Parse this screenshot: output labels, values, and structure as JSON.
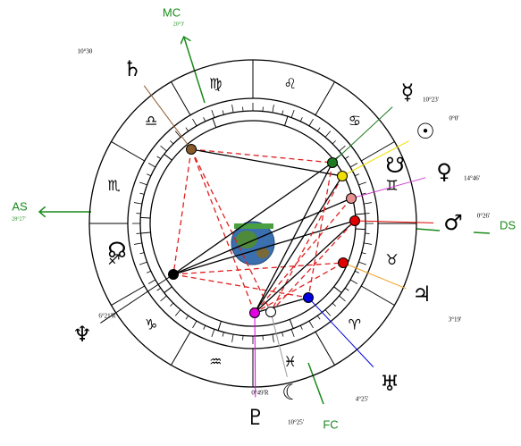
{
  "angles": {
    "mc": {
      "label": "MC",
      "degree": "20°3'"
    },
    "as": {
      "label": "AS",
      "degree": "28°27'"
    },
    "ds": {
      "label": "DS"
    },
    "fc": {
      "label": "FC"
    }
  },
  "signs": [
    "♍",
    "♌",
    "♋",
    "♊",
    "♉",
    "♈",
    "♓",
    "♒",
    "♑",
    "♐",
    "♏",
    "♎"
  ],
  "planets": [
    {
      "glyph": "♄",
      "position": "10°30"
    },
    {
      "glyph": "☿",
      "position": "10°23'"
    },
    {
      "glyph": "☉",
      "position": "0°0'"
    },
    {
      "glyph": "♀",
      "position": "14°46'"
    },
    {
      "glyph": "♂",
      "position": "0°26'"
    },
    {
      "glyph": "♃",
      "position": "3°19'"
    },
    {
      "glyph": "♅",
      "position": "4°25'"
    },
    {
      "glyph": "☾",
      "position": "10°25'"
    },
    {
      "glyph": "♇",
      "position": "0°49'R"
    },
    {
      "glyph": "♆",
      "position": "6°21'R"
    },
    {
      "glyph": "☊"
    },
    {
      "glyph": "☋"
    }
  ]
}
